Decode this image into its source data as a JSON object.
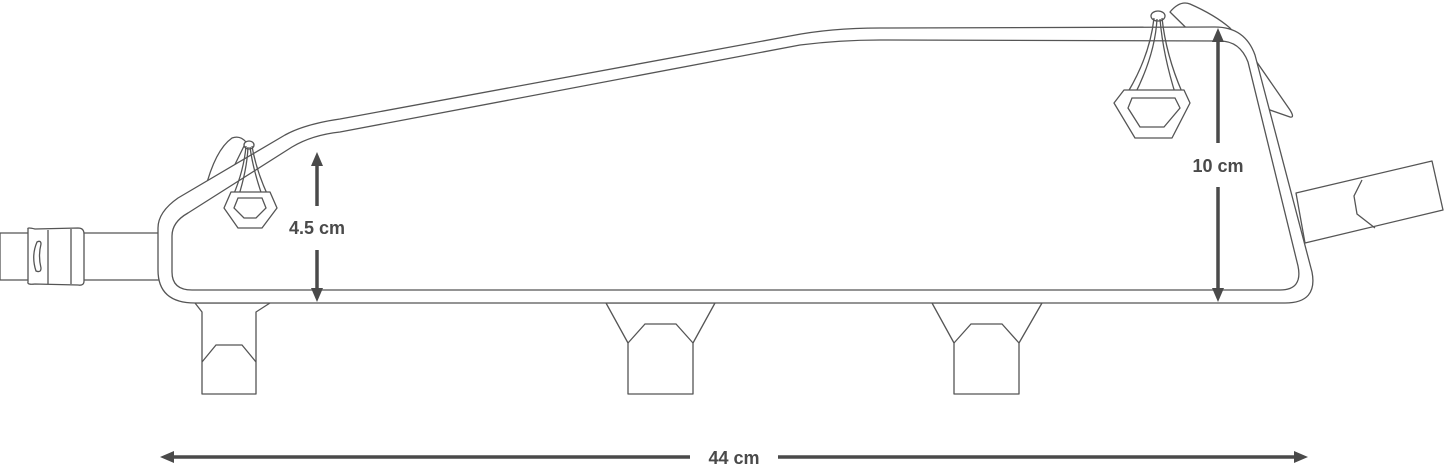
{
  "dimensions": {
    "front_height": "4.5 cm",
    "rear_height": "10 cm",
    "length": "44 cm"
  },
  "colors": {
    "outline": "#555555",
    "dimension": "#4a4a4a",
    "background": "#ffffff"
  }
}
